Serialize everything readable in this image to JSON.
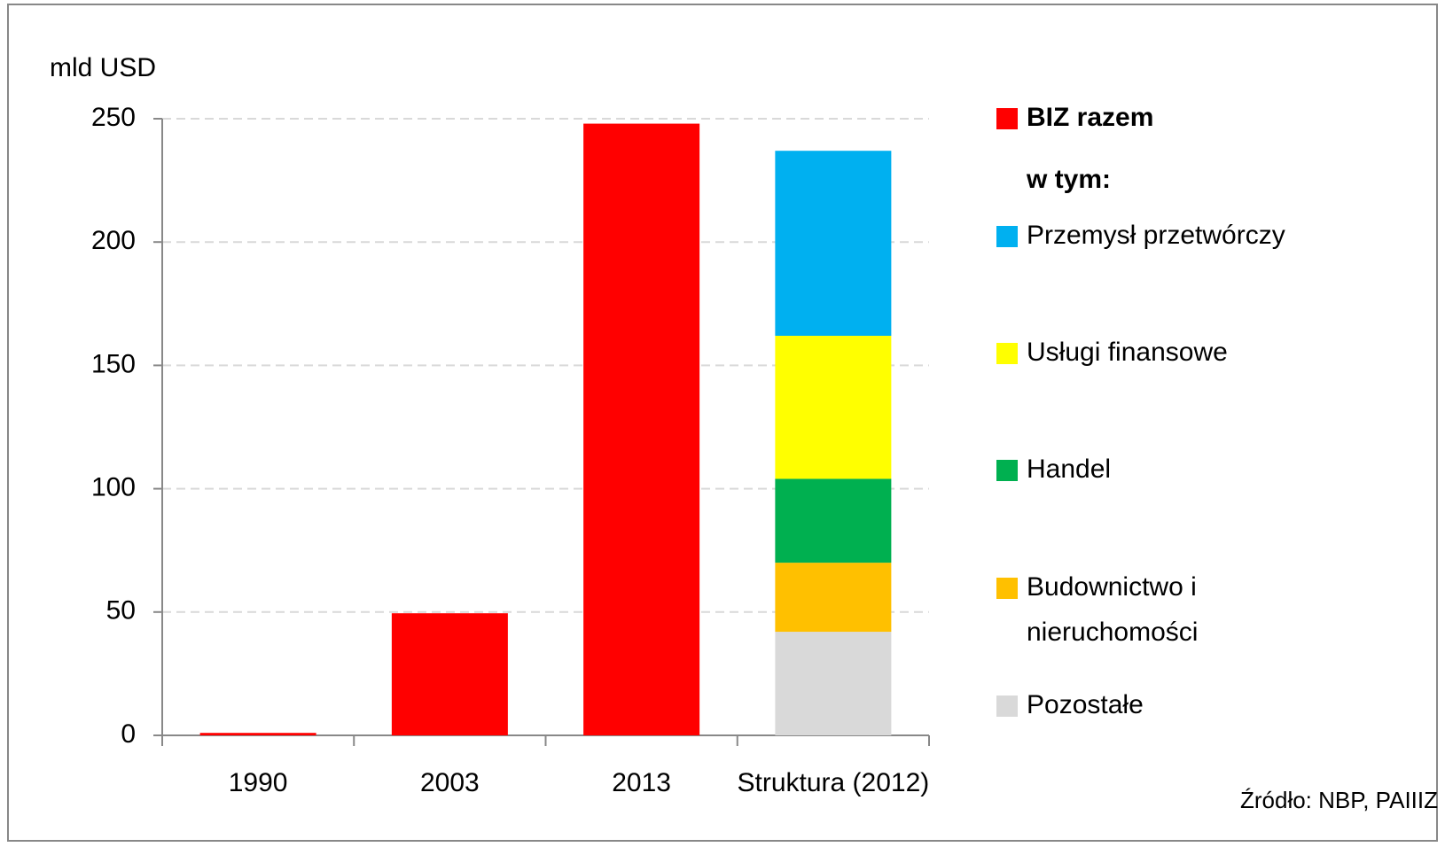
{
  "chart_data": {
    "type": "stacked_bar",
    "y_label": "mld USD",
    "categories": [
      "1990",
      "2003",
      "2013",
      "Struktura (2012)"
    ],
    "series": [
      {
        "name": "BIZ razem",
        "color": "#ff0000",
        "values": [
          1,
          49.5,
          248,
          null
        ]
      },
      {
        "name": "Przemysł przetwórczy",
        "color": "#00b0f0",
        "values": [
          null,
          null,
          null,
          75
        ]
      },
      {
        "name": "Usługi finansowe",
        "color": "#ffff00",
        "values": [
          null,
          null,
          null,
          58
        ]
      },
      {
        "name": "Handel",
        "color": "#00b050",
        "values": [
          null,
          null,
          null,
          34
        ]
      },
      {
        "name": "Budownictwo i nieruchomości",
        "color": "#ffc000",
        "values": [
          null,
          null,
          null,
          28
        ]
      },
      {
        "name": "Pozostałe",
        "color": "#d9d9d9",
        "values": [
          null,
          null,
          null,
          42
        ]
      }
    ],
    "legend_note": "w tym:",
    "source": "Źródło: NBP, PAIIIZ",
    "ylim": [
      0,
      250
    ],
    "yticks": [
      0,
      50,
      100,
      150,
      200,
      250
    ],
    "grid": true,
    "legend_position": "right"
  }
}
